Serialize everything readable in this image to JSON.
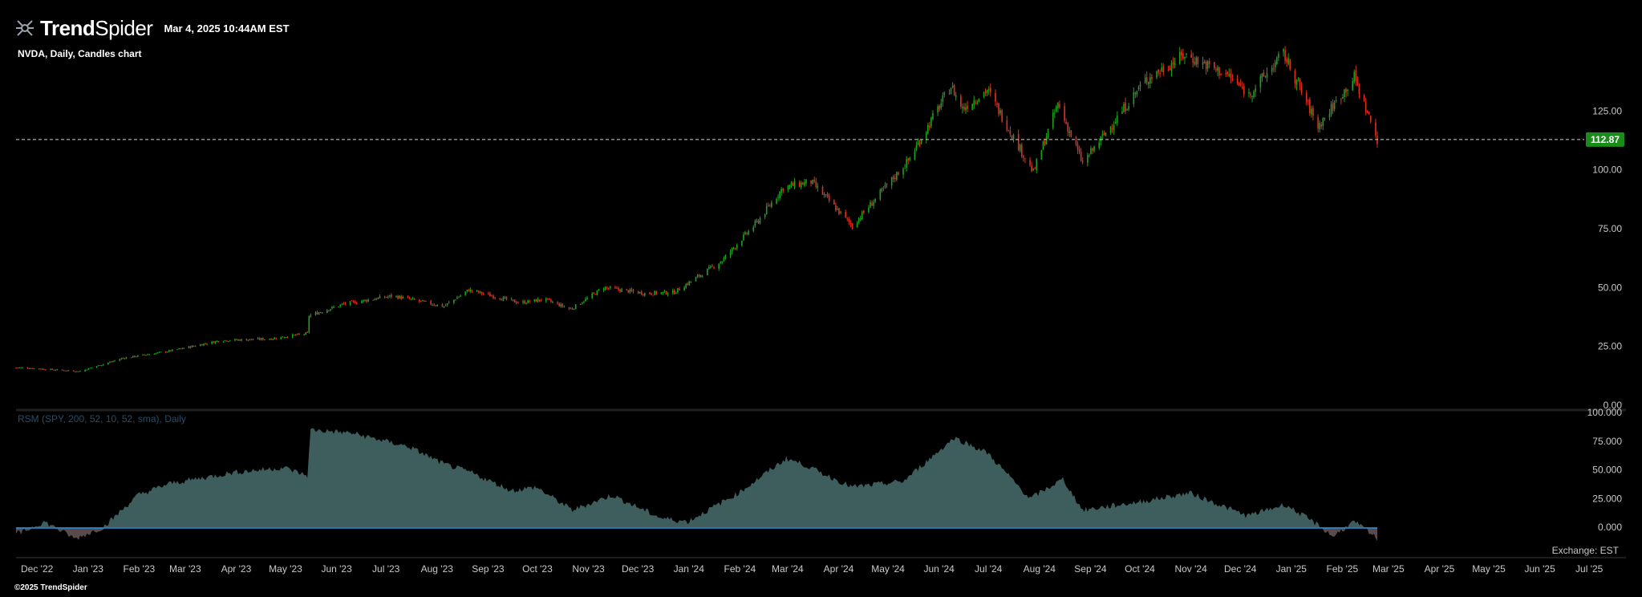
{
  "header": {
    "logo_bold": "Trend",
    "logo_light": "Spider",
    "timestamp": "Mar 4, 2025 10:44AM EST"
  },
  "chart_title": "NVDA, Daily, Candles chart",
  "footer": "©2025 TrendSpider",
  "exchange_label": "Exchange: EST",
  "colors": {
    "up": "#1fa01f",
    "down": "#e03020",
    "area": "#3e5e5e",
    "area_neg": "#5a4a4c",
    "zero_line": "#2a8fe0",
    "price_tag": "#1a8c1a"
  },
  "chart_data": [
    {
      "type": "candlestick",
      "symbol": "NVDA",
      "interval": "Daily",
      "ylim": [
        0,
        150
      ],
      "y_ticks": [
        "0.00",
        "25.00",
        "50.00",
        "75.00",
        "100.00",
        "125.00"
      ],
      "last_price": "112.87",
      "last_price_value": 112.87,
      "date_range": [
        "2022-11-28",
        "2025-03-04"
      ],
      "x_ticks": [
        "Dec '22",
        "Jan '23",
        "Feb '23",
        "Mar '23",
        "Apr '23",
        "May '23",
        "Jun '23",
        "Jul '23",
        "Aug '23",
        "Sep '23",
        "Oct '23",
        "Nov '23",
        "Dec '23",
        "Jan '24",
        "Feb '24",
        "Mar '24",
        "Apr '24",
        "May '24",
        "Jun '24",
        "Jul '24",
        "Aug '24",
        "Sep '24",
        "Oct '24",
        "Nov '24",
        "Dec '24",
        "Jan '25",
        "Feb '25",
        "Mar '25",
        "Apr '25",
        "May '25",
        "Jun '25",
        "Jul '25"
      ],
      "close_approx": [
        [
          "2022-12-01",
          16.0
        ],
        [
          "2023-01-01",
          14.6
        ],
        [
          "2023-01-05",
          14.3
        ],
        [
          "2023-02-01",
          20.0
        ],
        [
          "2023-03-01",
          23.0
        ],
        [
          "2023-04-01",
          27.5
        ],
        [
          "2023-05-01",
          28.2
        ],
        [
          "2023-05-24",
          30.5
        ],
        [
          "2023-05-25",
          38.0
        ],
        [
          "2023-06-15",
          43.0
        ],
        [
          "2023-07-15",
          46.5
        ],
        [
          "2023-08-15",
          42.0
        ],
        [
          "2023-08-30",
          49.0
        ],
        [
          "2023-09-30",
          43.5
        ],
        [
          "2023-10-15",
          45.0
        ],
        [
          "2023-10-31",
          40.8
        ],
        [
          "2023-11-20",
          50.0
        ],
        [
          "2023-12-15",
          47.5
        ],
        [
          "2024-01-02",
          48.0
        ],
        [
          "2024-01-31",
          61.5
        ],
        [
          "2024-02-22",
          78.5
        ],
        [
          "2024-03-08",
          92.5
        ],
        [
          "2024-03-25",
          95.0
        ],
        [
          "2024-04-19",
          76.2
        ],
        [
          "2024-05-23",
          103.8
        ],
        [
          "2024-06-18",
          135.6
        ],
        [
          "2024-06-25",
          126.0
        ],
        [
          "2024-07-10",
          134.0
        ],
        [
          "2024-08-07",
          98.9
        ],
        [
          "2024-08-22",
          128.0
        ],
        [
          "2024-09-06",
          102.8
        ],
        [
          "2024-10-14",
          138.1
        ],
        [
          "2024-11-07",
          148.9
        ],
        [
          "2024-12-03",
          140.3
        ],
        [
          "2024-12-16",
          132.0
        ],
        [
          "2025-01-06",
          149.4
        ],
        [
          "2025-01-27",
          118.4
        ],
        [
          "2025-02-18",
          139.4
        ],
        [
          "2025-03-04",
          112.87
        ]
      ]
    },
    {
      "type": "area",
      "name": "RSM (SPY, 200, 52, 10, 52, sma), Daily",
      "ylim": [
        -25,
        100
      ],
      "y_ticks": [
        "0.000",
        "25.000",
        "50.000",
        "75.000",
        "100.000"
      ],
      "values_approx": [
        [
          "2022-12-01",
          -5
        ],
        [
          "2022-12-15",
          5
        ],
        [
          "2023-01-03",
          -10
        ],
        [
          "2023-01-20",
          0
        ],
        [
          "2023-02-10",
          28
        ],
        [
          "2023-03-01",
          38
        ],
        [
          "2023-04-10",
          48
        ],
        [
          "2023-05-10",
          52
        ],
        [
          "2023-05-24",
          45
        ],
        [
          "2023-05-26",
          85
        ],
        [
          "2023-06-20",
          82
        ],
        [
          "2023-07-25",
          70
        ],
        [
          "2023-08-15",
          55
        ],
        [
          "2023-08-31",
          48
        ],
        [
          "2023-09-25",
          32
        ],
        [
          "2023-10-10",
          35
        ],
        [
          "2023-11-01",
          15
        ],
        [
          "2023-11-25",
          28
        ],
        [
          "2023-12-25",
          8
        ],
        [
          "2024-01-10",
          5
        ],
        [
          "2024-02-10",
          30
        ],
        [
          "2024-03-10",
          60
        ],
        [
          "2024-03-20",
          55
        ],
        [
          "2024-04-19",
          35
        ],
        [
          "2024-05-20",
          40
        ],
        [
          "2024-06-20",
          78
        ],
        [
          "2024-07-10",
          65
        ],
        [
          "2024-08-05",
          25
        ],
        [
          "2024-08-25",
          42
        ],
        [
          "2024-09-06",
          15
        ],
        [
          "2024-10-10",
          22
        ],
        [
          "2024-11-10",
          30
        ],
        [
          "2024-12-15",
          10
        ],
        [
          "2025-01-07",
          20
        ],
        [
          "2025-01-27",
          2
        ],
        [
          "2025-02-05",
          -8
        ],
        [
          "2025-02-18",
          5
        ],
        [
          "2025-03-04",
          -10
        ]
      ]
    }
  ]
}
